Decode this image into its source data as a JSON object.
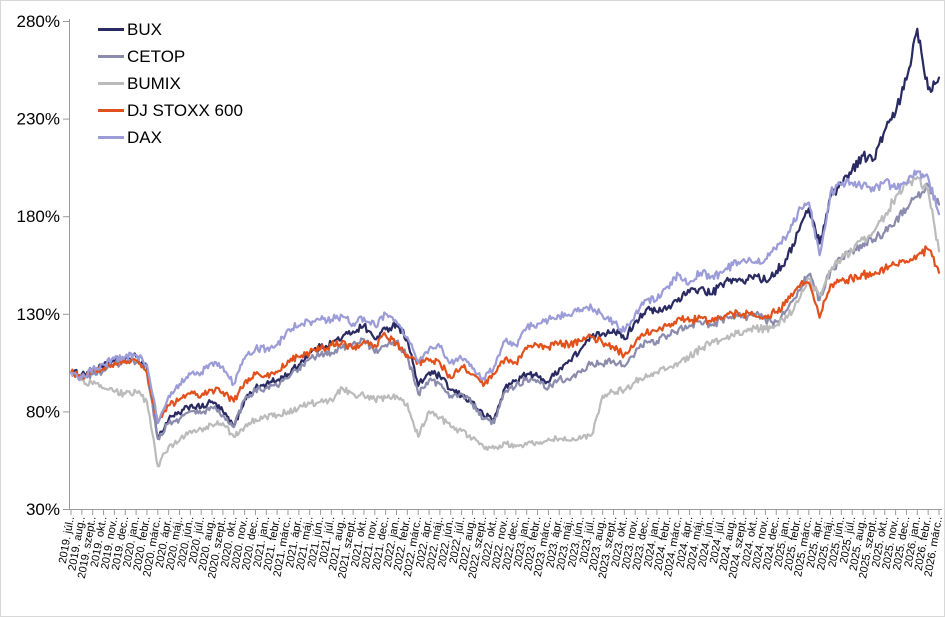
{
  "chart_data": {
    "type": "line",
    "title": "",
    "grid": false,
    "legend_position": "top-left",
    "ylim": [
      30,
      280
    ],
    "y_ticks": [
      280,
      230,
      180,
      130,
      80,
      30
    ],
    "y_tick_labels": [
      "280%",
      "230%",
      "180%",
      "130%",
      "80%",
      "30%"
    ],
    "x_labels": [
      "2019. júl..",
      "2019. aug..",
      "2019. szept..",
      "2019. okt..",
      "2019. nov..",
      "2019. dec..",
      "2020. jan..",
      "2020. febr..",
      "2020. márc..",
      "2020. ápr..",
      "2020. máj..",
      "2020. jún..",
      "2020. júl..",
      "2020. aug..",
      "2020. szept..",
      "2020. okt..",
      "2020. nov..",
      "2020. dec..",
      "2021. jan..",
      "2021. febr..",
      "2021. márc..",
      "2021. ápr..",
      "2021. máj..",
      "2021. jún..",
      "2021. júl..",
      "2021. aug..",
      "2021. szept..",
      "2021. okt..",
      "2021. nov..",
      "2021. dec..",
      "2022. jan..",
      "2022. febr..",
      "2022. márc..",
      "2022. ápr..",
      "2022. máj..",
      "2022. jún..",
      "2022. júl..",
      "2022. aug..",
      "2022. szept..",
      "2022. okt..",
      "2022. nov..",
      "2022. dec..",
      "2023. jan..",
      "2023. febr..",
      "2023. márc..",
      "2023. ápr..",
      "2023. máj..",
      "2023. jún..",
      "2023. júl..",
      "2023. aug..",
      "2023. szept..",
      "2023. okt..",
      "2023. nov..",
      "2023. dec..",
      "2024. jan..",
      "2024. febr..",
      "2024. márc..",
      "2024. ápr..",
      "2024. máj..",
      "2024. jún..",
      "2024. júl..",
      "2024. aug..",
      "2024. szept..",
      "2024. okt..",
      "2024. nov..",
      "2024. dec..",
      "2025. jan..",
      "2025. febr..",
      "2025. márc..",
      "2025. ápr..",
      "2025. máj..",
      "2025. jún..",
      "2025. júl..",
      "2025. aug..",
      "2025. szept..",
      "2025. okt..",
      "2025. nov..",
      "2025. dec..",
      "2026. jan..",
      "2026. febr..",
      "2026. márc.."
    ],
    "x_unit": "month",
    "value_unit": "percent (indexed, 2019. júl. = 100%)",
    "series": [
      {
        "name": "BUX",
        "color": "#2A2A62",
        "values": [
          100,
          99,
          101,
          103,
          106,
          107,
          108,
          103,
          66,
          76,
          79,
          83,
          82,
          85,
          80,
          72,
          86,
          92,
          94,
          96,
          99,
          104,
          110,
          113,
          115,
          118,
          121,
          124,
          117,
          122,
          125,
          117,
          93,
          100,
          98,
          91,
          88,
          85,
          78,
          76,
          92,
          96,
          99,
          98,
          95,
          102,
          106,
          112,
          118,
          120,
          122,
          117,
          126,
          132,
          131,
          133,
          138,
          141,
          143,
          140,
          145,
          148,
          146,
          150,
          147,
          152,
          158,
          172,
          184,
          166,
          190,
          197,
          204,
          211,
          209,
          224,
          233,
          250,
          276,
          245,
          251
        ]
      },
      {
        "name": "CETOP",
        "color": "#8B8BAD",
        "values": [
          100,
          97,
          99,
          101,
          104,
          105,
          105,
          100,
          66,
          74,
          76,
          80,
          79,
          82,
          78,
          72,
          86,
          91,
          92,
          93,
          97,
          102,
          107,
          109,
          110,
          113,
          115,
          117,
          110,
          114,
          116,
          108,
          89,
          96,
          94,
          88,
          89,
          84,
          76,
          74,
          90,
          93,
          97,
          96,
          92,
          97,
          96,
          100,
          105,
          104,
          106,
          103,
          110,
          116,
          116,
          119,
          122,
          124,
          126,
          124,
          127,
          129,
          128,
          130,
          127,
          126,
          132,
          142,
          150,
          137,
          152,
          158,
          162,
          166,
          168,
          172,
          178,
          184,
          190,
          196,
          186
        ]
      },
      {
        "name": "BUMIX",
        "color": "#BBBBBB",
        "values": [
          100,
          96,
          94,
          92,
          90,
          89,
          90,
          85,
          52,
          62,
          65,
          70,
          71,
          73,
          74,
          67,
          72,
          76,
          77,
          78,
          80,
          82,
          84,
          85,
          86,
          92,
          89,
          88,
          86,
          87,
          88,
          84,
          67,
          80,
          77,
          72,
          70,
          66,
          62,
          61,
          64,
          62,
          63,
          64,
          66,
          66,
          65,
          66,
          68,
          88,
          90,
          91,
          95,
          99,
          100,
          102,
          105,
          108,
          112,
          115,
          117,
          119,
          121,
          123,
          122,
          124,
          128,
          136,
          148,
          140,
          152,
          158,
          162,
          168,
          172,
          180,
          190,
          196,
          200,
          193,
          162
        ]
      },
      {
        "name": "DJ STOXX 600",
        "color": "#E2511B",
        "values": [
          100,
          98,
          101,
          102,
          105,
          106,
          106,
          100,
          74,
          83,
          86,
          89,
          88,
          91,
          90,
          85,
          95,
          99,
          98,
          100,
          106,
          108,
          110,
          112,
          114,
          116,
          112,
          116,
          114,
          119,
          115,
          109,
          105,
          106,
          105,
          97,
          103,
          99,
          93,
          99,
          107,
          105,
          112,
          114,
          113,
          115,
          114,
          116,
          118,
          115,
          113,
          109,
          115,
          120,
          121,
          124,
          128,
          126,
          128,
          126,
          128,
          130,
          130,
          129,
          129,
          131,
          136,
          144,
          146,
          128,
          145,
          147,
          148,
          150,
          150,
          153,
          155,
          157,
          160,
          163,
          151
        ]
      },
      {
        "name": "DAX",
        "color": "#9C9CD8",
        "values": [
          100,
          97,
          102,
          104,
          107,
          108,
          109,
          104,
          74,
          88,
          94,
          99,
          100,
          105,
          103,
          94,
          107,
          112,
          112,
          114,
          122,
          124,
          126,
          127,
          127,
          129,
          125,
          128,
          124,
          130,
          126,
          118,
          105,
          112,
          113,
          105,
          107,
          102,
          97,
          103,
          116,
          114,
          123,
          125,
          127,
          129,
          129,
          132,
          133,
          129,
          126,
          121,
          130,
          137,
          137,
          144,
          150,
          146,
          151,
          149,
          151,
          155,
          158,
          156,
          158,
          163,
          170,
          182,
          187,
          160,
          192,
          196,
          197,
          196,
          193,
          198,
          194,
          197,
          203,
          200,
          181
        ]
      }
    ],
    "axis_color": "#9b9b9b"
  }
}
